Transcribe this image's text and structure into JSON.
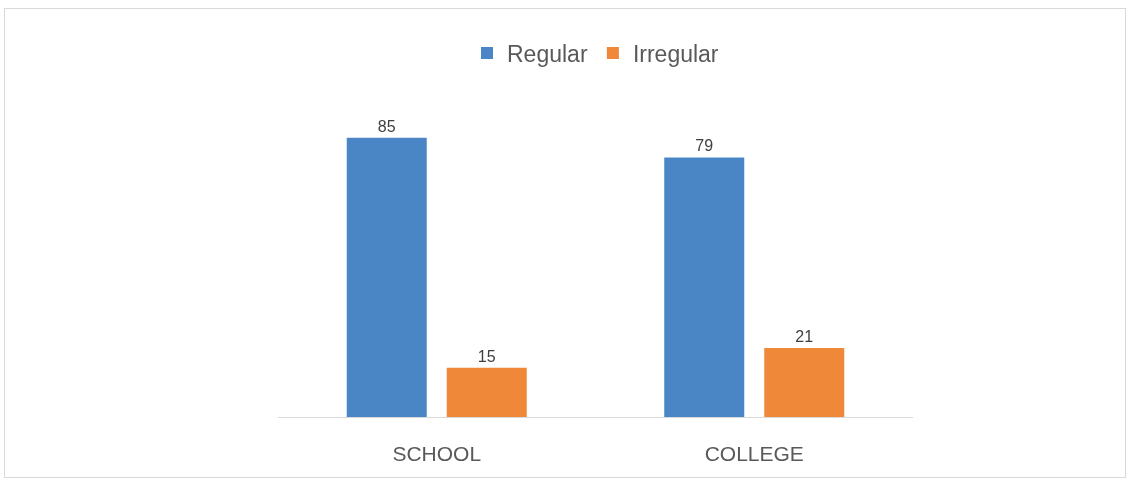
{
  "chart_data": {
    "type": "bar",
    "categories": [
      "SCHOOL",
      "COLLEGE"
    ],
    "series": [
      {
        "name": "Regular",
        "color": "#4a86c6",
        "values": [
          85,
          79
        ]
      },
      {
        "name": "Irregular",
        "color": "#ef8838",
        "values": [
          15,
          21
        ]
      }
    ],
    "data_labels": true,
    "legend": "top",
    "grid": false,
    "tick_labels": "x"
  }
}
